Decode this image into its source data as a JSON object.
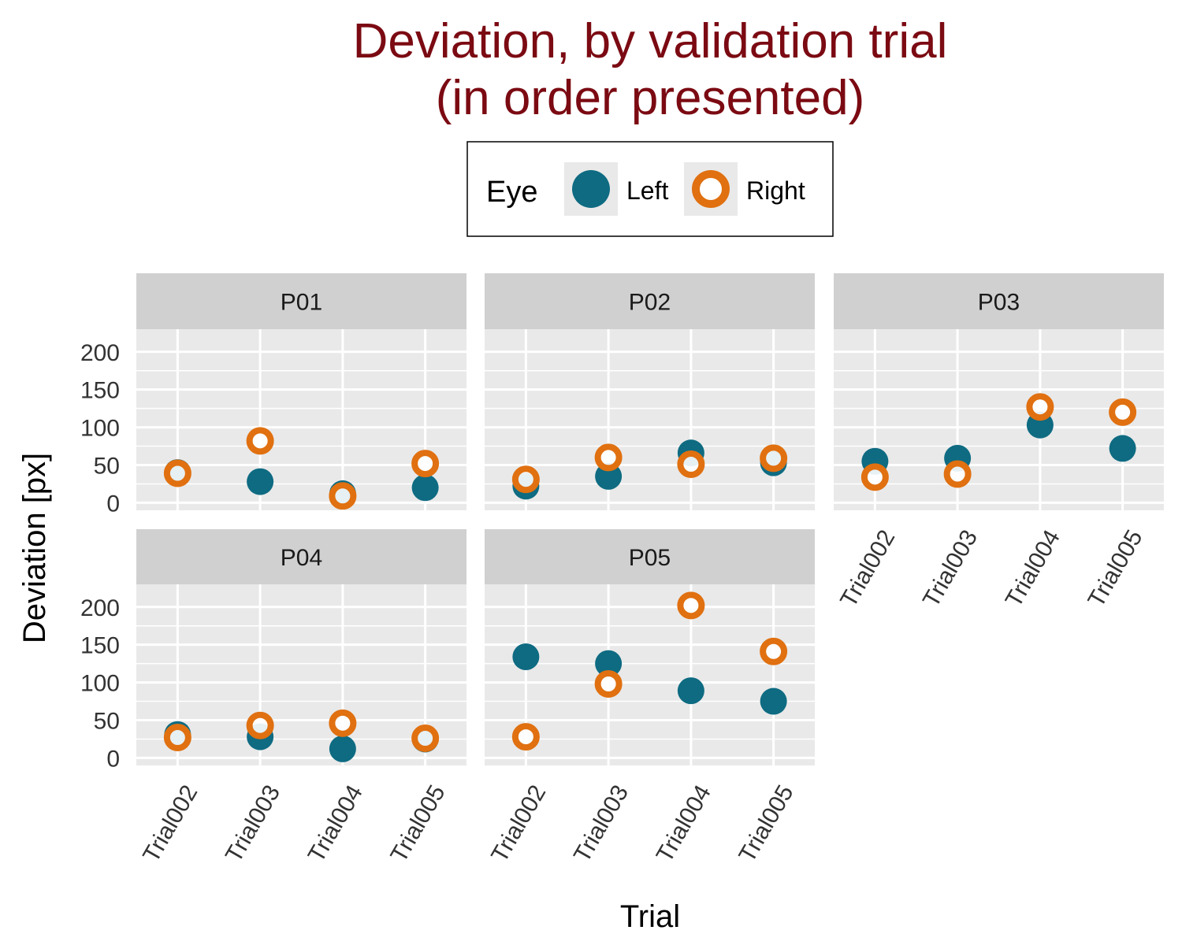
{
  "chart_data": {
    "type": "scatter",
    "title_line1": "Deviation, by validation trial",
    "title_line2": "(in order presented)",
    "xlabel": "Trial",
    "ylabel": "Deviation [px]",
    "ylim": [
      -10,
      230
    ],
    "yticks": [
      0,
      50,
      100,
      150,
      200
    ],
    "categories": [
      "Trial002",
      "Trial003",
      "Trial004",
      "Trial005"
    ],
    "legend": {
      "title": "Eye",
      "position": "top",
      "items": [
        {
          "label": "Left",
          "key": "left"
        },
        {
          "label": "Right",
          "key": "right"
        }
      ]
    },
    "colors": {
      "title": "#7b0a12",
      "left": "#0e6b82",
      "right": "#e07010",
      "panel_bg": "#e9e9e9",
      "strip_bg": "#d0d0d0",
      "grid": "#ffffff"
    },
    "grid": true,
    "panels": [
      {
        "label": "P01",
        "series": [
          {
            "name": "Left",
            "values": [
              40,
              28,
              12,
              20
            ]
          },
          {
            "name": "Right",
            "values": [
              39,
              82,
              9,
              52
            ]
          }
        ]
      },
      {
        "label": "P02",
        "series": [
          {
            "name": "Left",
            "values": [
              22,
              35,
              66,
              53
            ]
          },
          {
            "name": "Right",
            "values": [
              31,
              60,
              51,
              59
            ]
          }
        ]
      },
      {
        "label": "P03",
        "series": [
          {
            "name": "Left",
            "values": [
              55,
              59,
              103,
              72
            ]
          },
          {
            "name": "Right",
            "values": [
              34,
              38,
              127,
              120
            ]
          }
        ]
      },
      {
        "label": "P04",
        "series": [
          {
            "name": "Left",
            "values": [
              31,
              28,
              12,
              25
            ]
          },
          {
            "name": "Right",
            "values": [
              27,
              43,
              46,
              26
            ]
          }
        ]
      },
      {
        "label": "P05",
        "series": [
          {
            "name": "Left",
            "values": [
              134,
              125,
              89,
              75
            ]
          },
          {
            "name": "Right",
            "values": [
              28,
              98,
              202,
              141
            ]
          }
        ]
      }
    ]
  }
}
